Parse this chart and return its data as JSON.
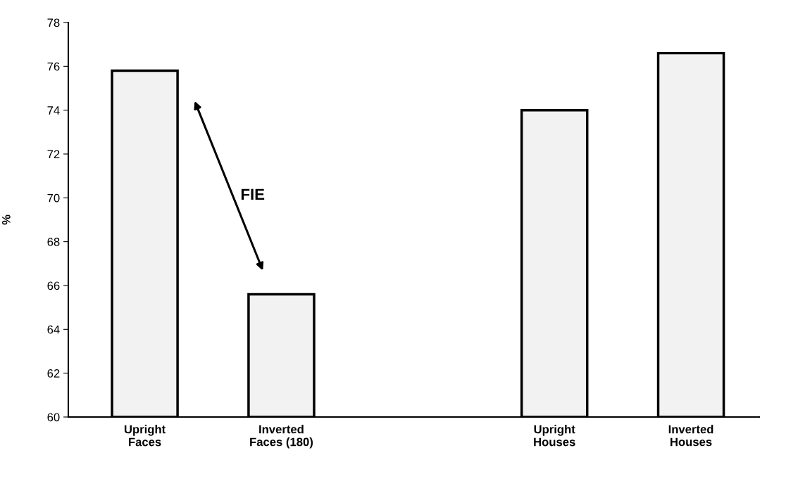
{
  "chart_data": {
    "type": "bar",
    "categories": [
      "Upright\nFaces",
      "Inverted\nFaces (180)",
      null,
      "Upright\nHouses",
      "Inverted\nHouses"
    ],
    "values": [
      75.8,
      65.6,
      null,
      74.0,
      76.6
    ],
    "color": "#f2f2f2",
    "ylabel": "%",
    "ylim": [
      60,
      78
    ],
    "yticks": [
      60,
      62,
      64,
      66,
      68,
      70,
      72,
      74,
      76,
      78
    ],
    "annotations": [
      "FIE"
    ],
    "grid": false
  }
}
